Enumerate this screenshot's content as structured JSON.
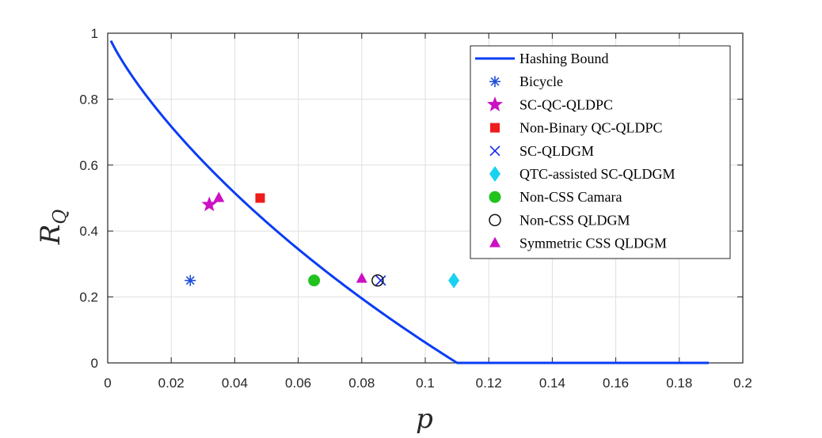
{
  "chart_data": {
    "type": "scatter",
    "title": "",
    "xlabel": "p",
    "ylabel_main": "R",
    "ylabel_sub": "Q",
    "xlim": [
      0,
      0.2
    ],
    "ylim": [
      0,
      1
    ],
    "grid": true,
    "legend_position": "top-right",
    "x_ticks": [
      {
        "value": 0,
        "label": "0"
      },
      {
        "value": 0.02,
        "label": "0.02"
      },
      {
        "value": 0.04,
        "label": "0.04"
      },
      {
        "value": 0.06,
        "label": "0.06"
      },
      {
        "value": 0.08,
        "label": "0.08"
      },
      {
        "value": 0.1,
        "label": "0.1"
      },
      {
        "value": 0.12,
        "label": "0.12"
      },
      {
        "value": 0.14,
        "label": "0.14"
      },
      {
        "value": 0.16,
        "label": "0.16"
      },
      {
        "value": 0.18,
        "label": "0.18"
      },
      {
        "value": 0.2,
        "label": "0.2"
      }
    ],
    "y_ticks": [
      {
        "value": 0,
        "label": "0"
      },
      {
        "value": 0.2,
        "label": "0.2"
      },
      {
        "value": 0.4,
        "label": "0.4"
      },
      {
        "value": 0.6,
        "label": "0.6"
      },
      {
        "value": 0.8,
        "label": "0.8"
      },
      {
        "value": 1,
        "label": "1"
      }
    ],
    "line": {
      "name": "Hashing Bound",
      "color": "#0a3cf5",
      "formula": "1 - 2*H2(p)",
      "x_range": [
        0.001,
        0.1893
      ]
    },
    "series": [
      {
        "name": "Bicycle",
        "marker": "asterisk",
        "color": "#1f4ed8",
        "points": [
          [
            0.026,
            0.25
          ]
        ]
      },
      {
        "name": "SC-QC-QLDPC",
        "marker": "star",
        "color": "#cc10c4",
        "points": [
          [
            0.032,
            0.48
          ]
        ]
      },
      {
        "name": "Non-Binary QC-QLDPC",
        "marker": "square",
        "color": "#ee1c1c",
        "points": [
          [
            0.048,
            0.5
          ]
        ]
      },
      {
        "name": "SC-QLDGM",
        "marker": "x",
        "color": "#1428e6",
        "points": [
          [
            0.086,
            0.25
          ]
        ]
      },
      {
        "name": "QTC-assisted SC-QLDGM",
        "marker": "diamond",
        "color": "#19d2f0",
        "points": [
          [
            0.109,
            0.25
          ]
        ]
      },
      {
        "name": "Non-CSS Camara",
        "marker": "circle-filled",
        "color": "#22c31f",
        "points": [
          [
            0.065,
            0.25
          ]
        ]
      },
      {
        "name": "Non-CSS QLDGM",
        "marker": "circle-open",
        "color": "#111111",
        "points": [
          [
            0.085,
            0.25
          ]
        ]
      },
      {
        "name": "Symmetric CSS QLDGM",
        "marker": "triangle",
        "color": "#cc10c4",
        "points": [
          [
            0.035,
            0.5
          ],
          [
            0.08,
            0.255
          ]
        ]
      }
    ]
  }
}
